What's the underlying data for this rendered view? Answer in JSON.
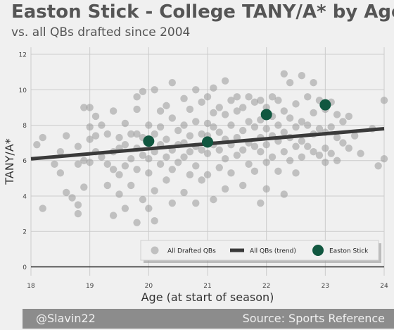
{
  "chart_data": {
    "type": "scatter",
    "title": "Easton Stick - College TANY/A* by Age",
    "subtitle": "vs. all QBs drafted since 2004",
    "xlabel": "Age (at start of season)",
    "ylabel": "TANY/A*",
    "xlim": [
      18,
      24
    ],
    "ylim": [
      -0.5,
      12.4
    ],
    "xticks": [
      "18",
      "19",
      "20",
      "21",
      "22",
      "23",
      "24"
    ],
    "yticks": [
      "0",
      "2",
      "4",
      "6",
      "8",
      "10",
      "12"
    ],
    "grid": true,
    "legend_position": "lower-right",
    "legend": [
      {
        "label": "All Drafted QBs",
        "type": "marker"
      },
      {
        "label": "All QBs (trend)",
        "type": "line"
      },
      {
        "label": "Easton Stick",
        "type": "marker"
      }
    ],
    "series": [
      {
        "name": "All Drafted QBs",
        "type": "scatter",
        "color": "#999999",
        "points": [
          [
            18.1,
            6.9
          ],
          [
            18.2,
            7.3
          ],
          [
            18.2,
            3.3
          ],
          [
            18.4,
            5.8
          ],
          [
            18.5,
            6.5
          ],
          [
            18.5,
            5.3
          ],
          [
            18.6,
            7.4
          ],
          [
            18.6,
            4.2
          ],
          [
            18.7,
            3.9
          ],
          [
            18.8,
            6.8
          ],
          [
            18.8,
            5.8
          ],
          [
            18.8,
            3.5
          ],
          [
            18.8,
            3.0
          ],
          [
            18.9,
            9.0
          ],
          [
            18.9,
            6.0
          ],
          [
            18.9,
            4.5
          ],
          [
            19.0,
            9.0
          ],
          [
            19.0,
            7.9
          ],
          [
            19.0,
            7.2
          ],
          [
            19.0,
            5.9
          ],
          [
            19.1,
            8.5
          ],
          [
            19.1,
            7.4
          ],
          [
            19.1,
            6.5
          ],
          [
            19.2,
            8.0
          ],
          [
            19.2,
            6.2
          ],
          [
            19.3,
            7.5
          ],
          [
            19.3,
            5.8
          ],
          [
            19.3,
            4.6
          ],
          [
            19.4,
            8.8
          ],
          [
            19.4,
            6.5
          ],
          [
            19.4,
            5.5
          ],
          [
            19.4,
            2.9
          ],
          [
            19.5,
            7.3
          ],
          [
            19.5,
            6.7
          ],
          [
            19.5,
            5.2
          ],
          [
            19.5,
            4.1
          ],
          [
            19.6,
            8.1
          ],
          [
            19.6,
            6.9
          ],
          [
            19.6,
            5.7
          ],
          [
            19.6,
            3.3
          ],
          [
            19.7,
            7.5
          ],
          [
            19.7,
            6.1
          ],
          [
            19.7,
            4.6
          ],
          [
            19.8,
            9.6
          ],
          [
            19.8,
            8.9
          ],
          [
            19.8,
            7.5
          ],
          [
            19.8,
            6.7
          ],
          [
            19.8,
            5.5
          ],
          [
            19.8,
            2.5
          ],
          [
            19.9,
            9.9
          ],
          [
            19.9,
            7.3
          ],
          [
            19.9,
            6.3
          ],
          [
            19.9,
            3.8
          ],
          [
            20.0,
            8.0
          ],
          [
            20.0,
            7.0
          ],
          [
            20.0,
            6.1
          ],
          [
            20.0,
            5.3
          ],
          [
            20.0,
            3.3
          ],
          [
            20.1,
            10.0
          ],
          [
            20.1,
            7.5
          ],
          [
            20.1,
            6.5
          ],
          [
            20.1,
            4.3
          ],
          [
            20.1,
            2.6
          ],
          [
            20.2,
            8.8
          ],
          [
            20.2,
            7.9
          ],
          [
            20.2,
            6.9
          ],
          [
            20.2,
            5.8
          ],
          [
            20.3,
            9.1
          ],
          [
            20.3,
            7.2
          ],
          [
            20.3,
            6.2
          ],
          [
            20.3,
            4.9
          ],
          [
            20.4,
            10.4
          ],
          [
            20.4,
            8.4
          ],
          [
            20.4,
            6.6
          ],
          [
            20.4,
            5.5
          ],
          [
            20.4,
            3.6
          ],
          [
            20.5,
            7.7
          ],
          [
            20.5,
            6.9
          ],
          [
            20.5,
            5.9
          ],
          [
            20.6,
            9.5
          ],
          [
            20.6,
            8.0
          ],
          [
            20.6,
            7.0
          ],
          [
            20.6,
            6.2
          ],
          [
            20.6,
            4.2
          ],
          [
            20.7,
            8.9
          ],
          [
            20.7,
            7.4
          ],
          [
            20.7,
            6.5
          ],
          [
            20.7,
            5.2
          ],
          [
            20.8,
            10.0
          ],
          [
            20.8,
            8.2
          ],
          [
            20.8,
            6.8
          ],
          [
            20.8,
            5.7
          ],
          [
            20.8,
            3.6
          ],
          [
            20.9,
            9.3
          ],
          [
            20.9,
            7.5
          ],
          [
            20.9,
            6.6
          ],
          [
            20.9,
            4.9
          ],
          [
            21.0,
            9.6
          ],
          [
            21.0,
            8.1
          ],
          [
            21.0,
            7.4
          ],
          [
            21.0,
            6.4
          ],
          [
            21.0,
            5.2
          ],
          [
            21.1,
            10.1
          ],
          [
            21.1,
            8.7
          ],
          [
            21.1,
            7.9
          ],
          [
            21.1,
            6.9
          ],
          [
            21.1,
            3.8
          ],
          [
            21.2,
            9.0
          ],
          [
            21.2,
            7.6
          ],
          [
            21.2,
            6.6
          ],
          [
            21.2,
            5.6
          ],
          [
            21.3,
            10.5
          ],
          [
            21.3,
            8.6
          ],
          [
            21.3,
            7.2
          ],
          [
            21.3,
            6.1
          ],
          [
            21.3,
            4.4
          ],
          [
            21.4,
            9.4
          ],
          [
            21.4,
            8.0
          ],
          [
            21.4,
            6.9
          ],
          [
            21.4,
            5.3
          ],
          [
            21.5,
            9.6
          ],
          [
            21.5,
            8.8
          ],
          [
            21.5,
            7.3
          ],
          [
            21.5,
            6.3
          ],
          [
            21.6,
            9.0
          ],
          [
            21.6,
            7.7
          ],
          [
            21.6,
            6.6
          ],
          [
            21.6,
            4.6
          ],
          [
            21.7,
            9.6
          ],
          [
            21.7,
            8.2
          ],
          [
            21.7,
            7.0
          ],
          [
            21.7,
            5.8
          ],
          [
            21.8,
            9.3
          ],
          [
            21.8,
            7.9
          ],
          [
            21.8,
            6.8
          ],
          [
            21.8,
            5.4
          ],
          [
            21.9,
            9.4
          ],
          [
            21.9,
            8.3
          ],
          [
            21.9,
            7.3
          ],
          [
            21.9,
            6.5
          ],
          [
            21.9,
            3.6
          ],
          [
            22.0,
            9.0
          ],
          [
            22.0,
            7.8
          ],
          [
            22.0,
            6.9
          ],
          [
            22.0,
            5.9
          ],
          [
            22.0,
            4.4
          ],
          [
            22.1,
            9.6
          ],
          [
            22.1,
            8.5
          ],
          [
            22.1,
            7.4
          ],
          [
            22.1,
            6.2
          ],
          [
            22.2,
            9.4
          ],
          [
            22.2,
            8.0
          ],
          [
            22.2,
            7.1
          ],
          [
            22.2,
            5.4
          ],
          [
            22.3,
            10.9
          ],
          [
            22.3,
            8.8
          ],
          [
            22.3,
            7.6
          ],
          [
            22.3,
            6.5
          ],
          [
            22.3,
            4.1
          ],
          [
            22.4,
            10.4
          ],
          [
            22.4,
            8.4
          ],
          [
            22.4,
            7.3
          ],
          [
            22.4,
            6.0
          ],
          [
            22.5,
            9.2
          ],
          [
            22.5,
            7.9
          ],
          [
            22.5,
            6.8
          ],
          [
            22.5,
            5.3
          ],
          [
            22.6,
            10.8
          ],
          [
            22.6,
            8.2
          ],
          [
            22.6,
            7.1
          ],
          [
            22.6,
            6.2
          ],
          [
            22.7,
            9.6
          ],
          [
            22.7,
            8.0
          ],
          [
            22.7,
            6.8
          ],
          [
            22.8,
            10.4
          ],
          [
            22.8,
            8.7
          ],
          [
            22.8,
            7.5
          ],
          [
            22.8,
            6.5
          ],
          [
            22.9,
            9.4
          ],
          [
            22.9,
            7.8
          ],
          [
            22.9,
            6.3
          ],
          [
            23.0,
            8.9
          ],
          [
            23.0,
            7.6
          ],
          [
            23.0,
            6.7
          ],
          [
            23.0,
            5.9
          ],
          [
            23.1,
            9.3
          ],
          [
            23.1,
            7.9
          ],
          [
            23.1,
            6.4
          ],
          [
            23.2,
            8.6
          ],
          [
            23.2,
            7.3
          ],
          [
            23.2,
            6.0
          ],
          [
            23.3,
            8.2
          ],
          [
            23.3,
            7.0
          ],
          [
            23.4,
            8.5
          ],
          [
            23.4,
            6.7
          ],
          [
            23.5,
            7.4
          ],
          [
            23.6,
            6.4
          ],
          [
            23.8,
            7.8
          ],
          [
            23.9,
            5.7
          ],
          [
            24.0,
            9.4
          ],
          [
            24.0,
            6.1
          ]
        ]
      },
      {
        "name": "All QBs (trend)",
        "type": "line",
        "color": "#3a3a3a",
        "points": [
          [
            18,
            6.1
          ],
          [
            24,
            7.8
          ]
        ]
      },
      {
        "name": "Easton Stick",
        "type": "scatter",
        "color": "#115740",
        "points": [
          [
            20.0,
            7.1
          ],
          [
            21.0,
            7.05
          ],
          [
            22.0,
            8.6
          ],
          [
            23.0,
            9.15
          ]
        ]
      }
    ]
  },
  "footer": {
    "left": "@Slavin22",
    "right": "Source: Sports Reference"
  }
}
